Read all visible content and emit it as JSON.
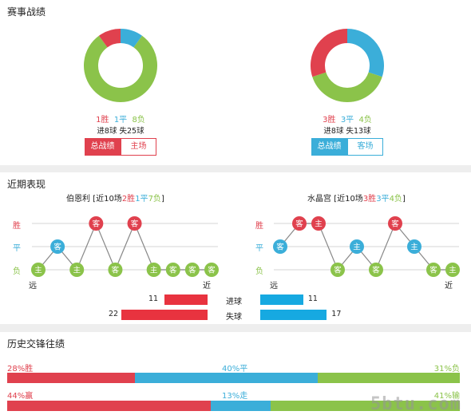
{
  "colors": {
    "win": "#e0414e",
    "draw": "#3baed9",
    "loss": "#8bc34a",
    "bar_red": "#e8333f",
    "bar_blue": "#16a9e1"
  },
  "sections": {
    "record": "赛事战绩",
    "recent": "近期表现",
    "history": "历史交锋往绩"
  },
  "home_record": {
    "wins": "1胜",
    "draws": "1平",
    "losses": "8负",
    "goals": "进8球  失25球",
    "tab_total": "总战绩",
    "tab_venue": "主场",
    "donut": {
      "win": 1,
      "draw": 1,
      "loss": 8
    }
  },
  "away_record": {
    "wins": "3胜",
    "draws": "3平",
    "losses": "4负",
    "goals": "进8球  失13球",
    "tab_total": "总战绩",
    "tab_venue": "客场",
    "donut": {
      "win": 3,
      "draw": 3,
      "loss": 4
    }
  },
  "recent": {
    "y_labels": {
      "win": "胜",
      "draw": "平",
      "loss": "负"
    },
    "far": "远",
    "near": "近",
    "home": {
      "name": "伯恩利",
      "summary_pre": " [近10场",
      "w": "2胜",
      "d": "1平",
      "l": "7负",
      "summary_post": "]",
      "results": [
        "L",
        "D",
        "L",
        "W",
        "L",
        "W",
        "L",
        "L",
        "L",
        "L"
      ],
      "venues": [
        "主",
        "客",
        "主",
        "客",
        "客",
        "客",
        "主",
        "客",
        "客",
        "客"
      ]
    },
    "away": {
      "name": "水晶宫",
      "summary_pre": " [近10场",
      "w": "3胜",
      "d": "3平",
      "l": "4负",
      "summary_post": "]",
      "results": [
        "D",
        "W",
        "W",
        "L",
        "D",
        "L",
        "W",
        "D",
        "L",
        "L"
      ],
      "venues": [
        "客",
        "客",
        "主",
        "客",
        "主",
        "客",
        "客",
        "主",
        "客",
        "主"
      ]
    },
    "goals_for": {
      "label": "进球",
      "home": 11,
      "away": 11
    },
    "goals_against": {
      "label": "失球",
      "home": 22,
      "away": 17
    }
  },
  "history": {
    "row1": {
      "left": "28%胜",
      "mid": "40%平",
      "right": "31%负",
      "red": 28,
      "blue": 40,
      "green": 31
    },
    "row2": {
      "left": "44%赢",
      "mid": "13%走",
      "right": "41%输",
      "red": 44,
      "blue": 13,
      "green": 41
    }
  },
  "watermark": "5btu.com"
}
